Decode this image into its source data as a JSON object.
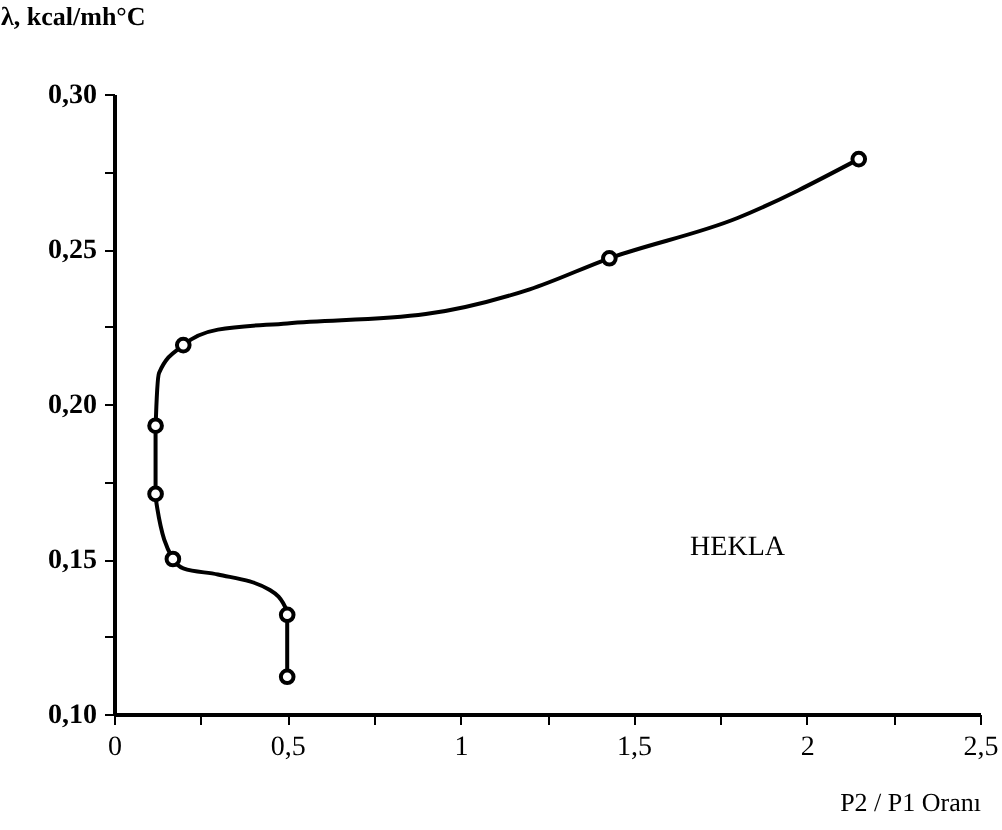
{
  "chart_data": {
    "type": "line",
    "xlabel": "P2 / P1 Oranı",
    "ylabel": "λ, kcal/mh°C",
    "annotations": [
      "HEKLA"
    ],
    "xlim": [
      0,
      2.5
    ],
    "ylim": [
      0.1,
      0.3
    ],
    "xticks": [
      {
        "value": 0,
        "label": "0"
      },
      {
        "value": 0.25,
        "label": null
      },
      {
        "value": 0.5,
        "label": "0,5"
      },
      {
        "value": 0.75,
        "label": null
      },
      {
        "value": 1,
        "label": "1"
      },
      {
        "value": 1.25,
        "label": null
      },
      {
        "value": 1.5,
        "label": "1,5"
      },
      {
        "value": 1.75,
        "label": null
      },
      {
        "value": 2,
        "label": "2"
      },
      {
        "value": 2.25,
        "label": null
      },
      {
        "value": 2.5,
        "label": "2,5"
      }
    ],
    "yticks": [
      {
        "value": 0.1,
        "label": "0,10"
      },
      {
        "value": 0.125,
        "label": null
      },
      {
        "value": 0.15,
        "label": "0,15"
      },
      {
        "value": 0.175,
        "label": null
      },
      {
        "value": 0.2,
        "label": "0,20"
      },
      {
        "value": 0.225,
        "label": null
      },
      {
        "value": 0.25,
        "label": "0,25"
      },
      {
        "value": 0.275,
        "label": null
      },
      {
        "value": 0.3,
        "label": "0,30"
      }
    ],
    "grid": false,
    "series": [
      {
        "marker": "none",
        "color": "#000000",
        "x": [
          0.5,
          0.5,
          0.45,
          0.3,
          0.2,
          0.17,
          0.12,
          0.12,
          0.13,
          0.2,
          0.3,
          0.5,
          0.9,
          1.2,
          1.43,
          1.8,
          2.15
        ],
        "values": [
          0.113,
          0.133,
          0.14,
          0.145,
          0.147,
          0.15,
          0.17,
          0.192,
          0.21,
          0.219,
          0.224,
          0.226,
          0.229,
          0.237,
          0.247,
          0.26,
          0.279
        ]
      },
      {
        "type": "scatter",
        "marker": "circle",
        "color": "#000000",
        "x": [
          0.5,
          0.5,
          0.17,
          0.12,
          0.12,
          0.2,
          1.43,
          2.15
        ],
        "values": [
          0.112,
          0.132,
          0.15,
          0.171,
          0.193,
          0.219,
          0.247,
          0.279
        ]
      }
    ]
  }
}
